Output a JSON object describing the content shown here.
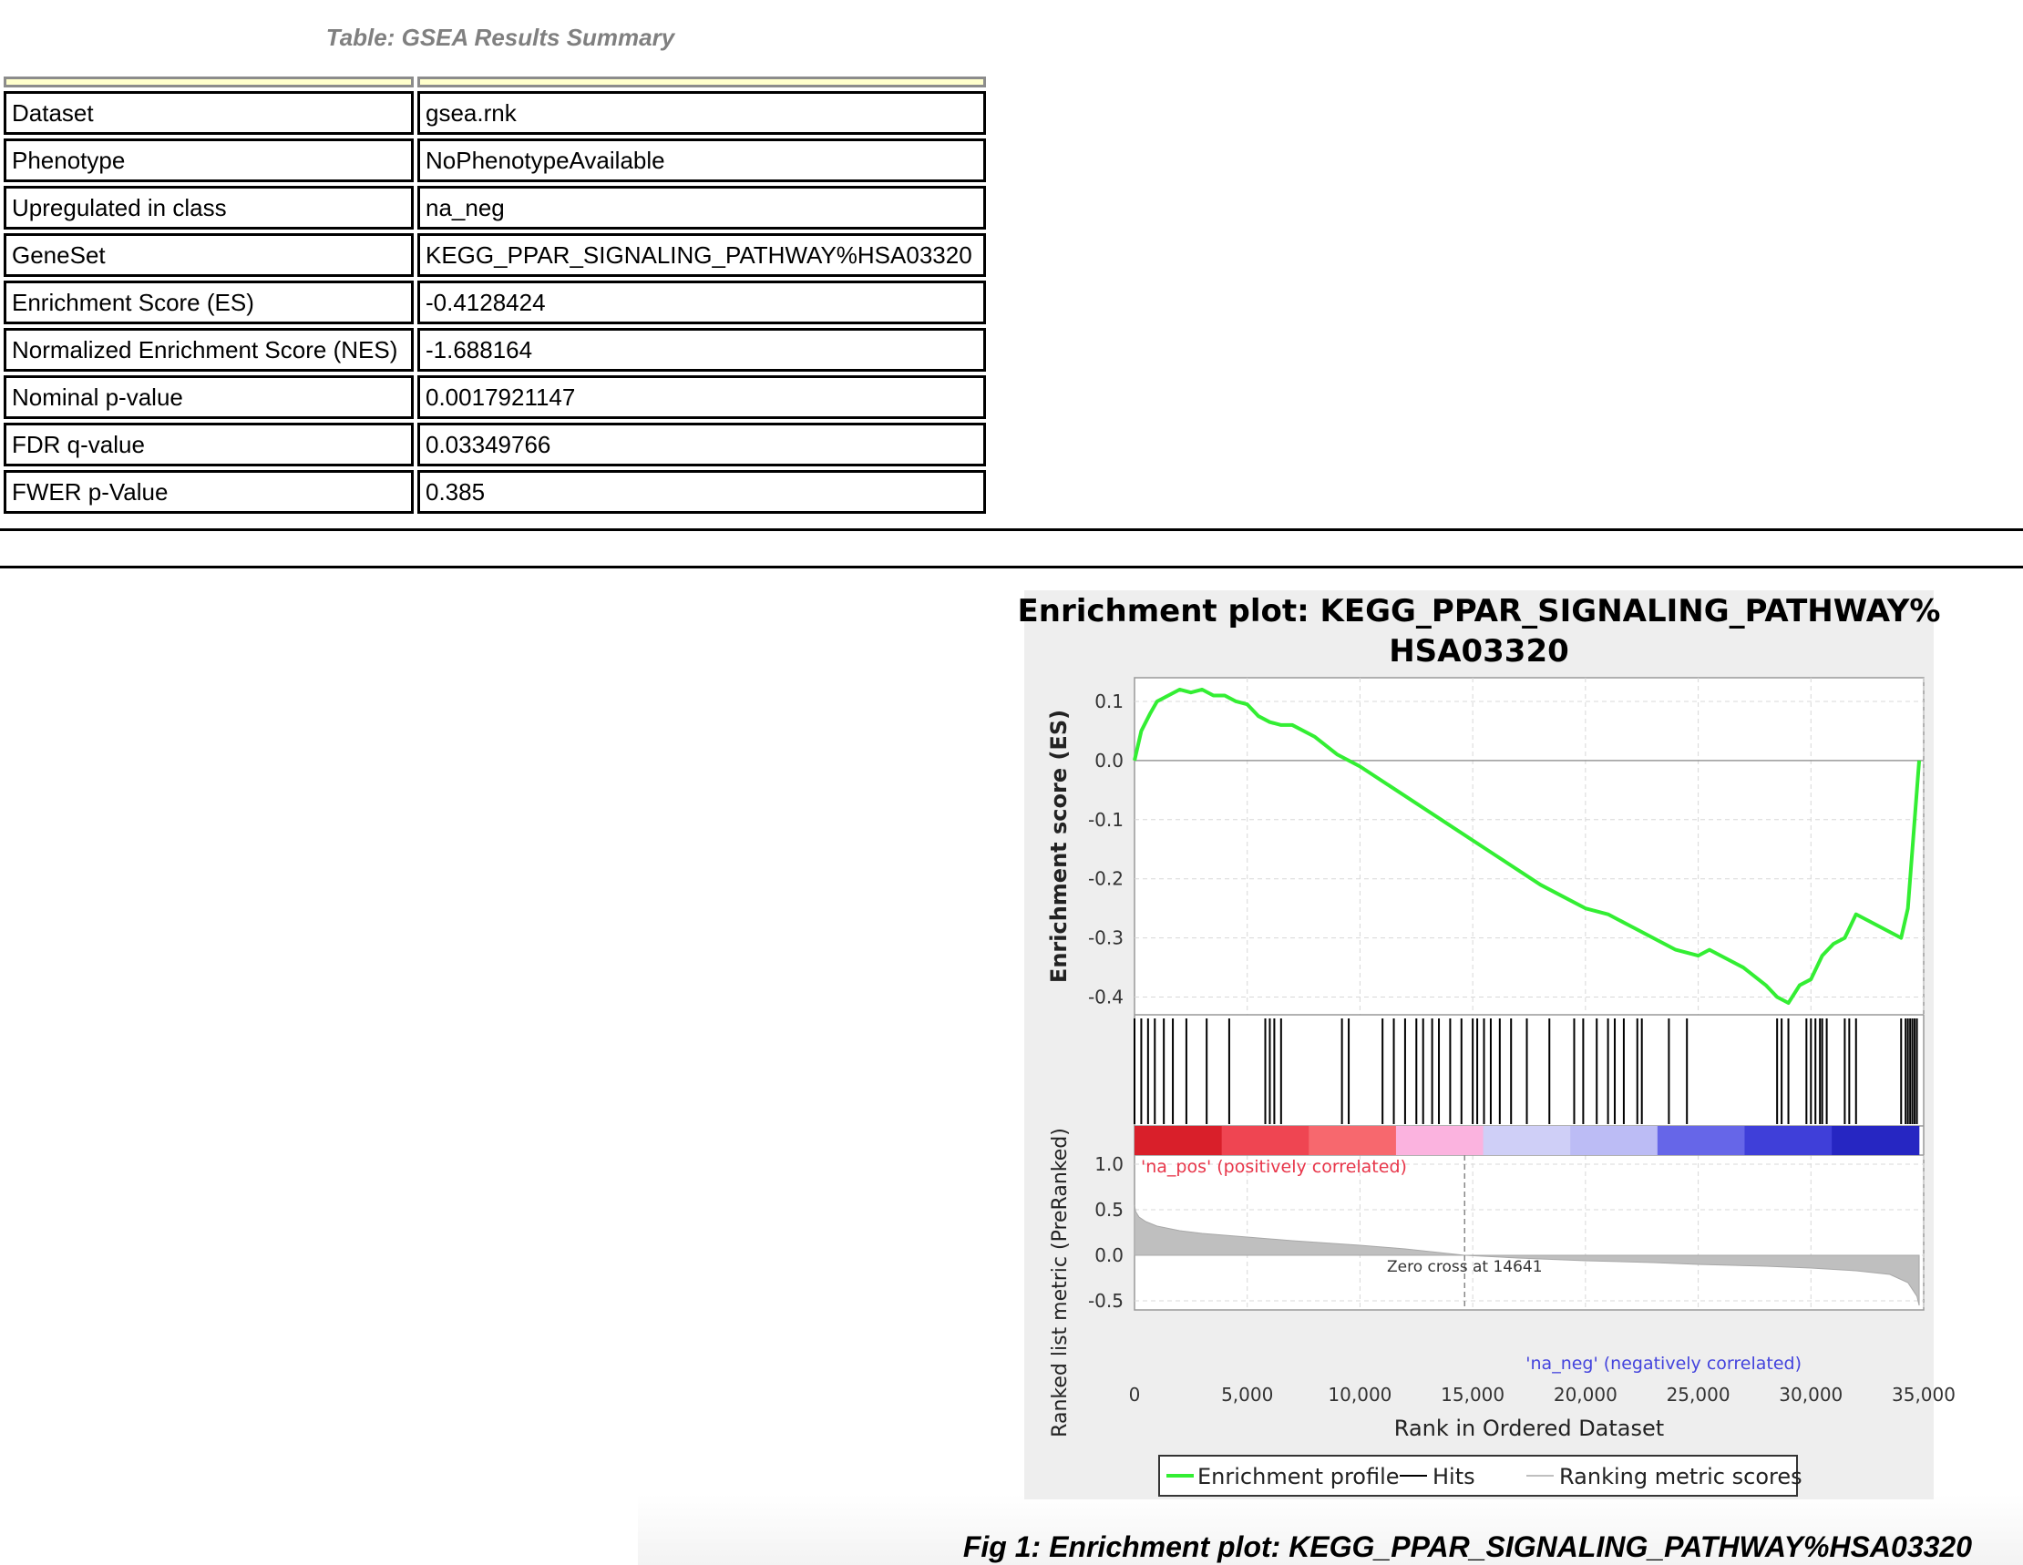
{
  "table": {
    "caption": "Table: GSEA Results Summary",
    "rows": [
      {
        "key": "Dataset",
        "value": "gsea.rnk"
      },
      {
        "key": "Phenotype",
        "value": "NoPhenotypeAvailable"
      },
      {
        "key": "Upregulated in class",
        "value": "na_neg"
      },
      {
        "key": "GeneSet",
        "value": "KEGG_PPAR_SIGNALING_PATHWAY%HSA03320"
      },
      {
        "key": "Enrichment Score (ES)",
        "value": "-0.4128424"
      },
      {
        "key": "Normalized Enrichment Score (NES)",
        "value": "-1.688164"
      },
      {
        "key": "Nominal p-value",
        "value": "0.0017921147"
      },
      {
        "key": "FDR q-value",
        "value": "0.03349766"
      },
      {
        "key": "FWER p-Value",
        "value": "0.385"
      }
    ]
  },
  "figure": {
    "caption": "Fig 1: Enrichment plot: KEGG_PPAR_SIGNALING_PATHWAY%HSA03320"
  },
  "chart_data": {
    "type": "line",
    "title": "Enrichment plot: KEGG_PPAR_SIGNALING_PATHWAY%HSA03320",
    "title_lines": [
      "Enrichment plot: KEGG_PPAR_SIGNALING_PATHWAY%",
      "HSA03320"
    ],
    "xlabel": "Rank in Ordered Dataset",
    "ylabel_top": "Enrichment score (ES)",
    "ylabel_bottom": "Ranked list metric (PreRanked)",
    "xlim": [
      0,
      35000
    ],
    "x_ticks": [
      0,
      5000,
      10000,
      15000,
      20000,
      25000,
      30000,
      35000
    ],
    "x_tick_labels": [
      "0",
      "5,000",
      "10,000",
      "15,000",
      "20,000",
      "25,000",
      "30,000",
      "35,000"
    ],
    "es_ylim": [
      -0.43,
      0.14
    ],
    "es_ticks": [
      0.1,
      0.0,
      -0.1,
      -0.2,
      -0.3,
      -0.4
    ],
    "es_tick_labels": [
      "0.1",
      "0.0",
      "-0.1",
      "-0.2",
      "-0.3",
      "-0.4"
    ],
    "metric_ylim": [
      -0.6,
      1.1
    ],
    "metric_ticks": [
      1.0,
      0.5,
      0.0,
      -0.5
    ],
    "metric_tick_labels": [
      "1.0",
      "0.5",
      "0.0",
      "-0.5"
    ],
    "grid": true,
    "line_color": "#33ee33",
    "hit_color": "#000000",
    "metric_fill_color": "#bfbfbf",
    "pos_label_color": "#e8364a",
    "neg_label_color": "#4444dd",
    "series": [
      {
        "name": "Enrichment profile",
        "x": [
          0,
          300,
          700,
          1000,
          1500,
          2000,
          2500,
          3000,
          3500,
          4000,
          4500,
          5000,
          5500,
          6000,
          6500,
          7000,
          8000,
          9000,
          9500,
          10000,
          12000,
          14000,
          16000,
          18000,
          19000,
          20000,
          21000,
          22000,
          23000,
          24000,
          25000,
          25500,
          26000,
          27000,
          28000,
          28500,
          29000,
          29500,
          30000,
          30500,
          31000,
          31500,
          32000,
          32500,
          33000,
          33500,
          34000,
          34300,
          34500,
          34700,
          34800
        ],
        "y": [
          0.0,
          0.05,
          0.08,
          0.1,
          0.11,
          0.12,
          0.115,
          0.12,
          0.11,
          0.11,
          0.1,
          0.095,
          0.075,
          0.065,
          0.06,
          0.06,
          0.04,
          0.01,
          0.0,
          -0.01,
          -0.06,
          -0.11,
          -0.16,
          -0.21,
          -0.23,
          -0.25,
          -0.26,
          -0.28,
          -0.3,
          -0.32,
          -0.33,
          -0.32,
          -0.33,
          -0.35,
          -0.38,
          -0.4,
          -0.41,
          -0.38,
          -0.37,
          -0.33,
          -0.31,
          -0.3,
          -0.26,
          -0.27,
          -0.28,
          -0.29,
          -0.3,
          -0.25,
          -0.15,
          -0.05,
          0.0
        ]
      },
      {
        "name": "Hits",
        "hits": [
          0,
          300,
          600,
          900,
          1300,
          1700,
          2300,
          3200,
          4200,
          5800,
          6000,
          6200,
          6500,
          9200,
          9500,
          11000,
          11500,
          12000,
          12500,
          12800,
          13200,
          13500,
          14000,
          14500,
          15000,
          15200,
          15500,
          15800,
          16200,
          16700,
          17400,
          18400,
          19500,
          19900,
          20500,
          21000,
          21300,
          21700,
          22300,
          22500,
          23700,
          24500,
          28500,
          28700,
          29000,
          29800,
          30000,
          30200,
          30400,
          30500,
          30700,
          31500,
          31700,
          32000,
          34000,
          34200,
          34300,
          34400,
          34500,
          34600,
          34700
        ]
      },
      {
        "name": "Ranking metric scores",
        "x": [
          0,
          50,
          200,
          500,
          1000,
          2000,
          3000,
          5000,
          7000,
          10000,
          12000,
          14641,
          17000,
          20000,
          23000,
          25000,
          28000,
          30000,
          32000,
          33500,
          34300,
          34700,
          34800
        ],
        "y": [
          0.55,
          0.48,
          0.42,
          0.37,
          0.32,
          0.27,
          0.24,
          0.2,
          0.16,
          0.11,
          0.07,
          0.0,
          -0.03,
          -0.06,
          -0.08,
          -0.1,
          -0.12,
          -0.14,
          -0.17,
          -0.21,
          -0.3,
          -0.45,
          -0.55
        ]
      }
    ],
    "heatmap_colors": [
      "#d91f2a",
      "#ef4552",
      "#f7686e",
      "#fbb3df",
      "#cfcff7",
      "#bcbcf5",
      "#6666e8",
      "#3f3fd9",
      "#2626c2"
    ],
    "zero_cross": 14641,
    "zero_cross_label": "Zero cross at 14641",
    "pos_label": "'na_pos' (positively correlated)",
    "neg_label": "'na_neg' (negatively correlated)",
    "legend": [
      {
        "label": "Enrichment profile",
        "color": "#33ee33"
      },
      {
        "label": "Hits",
        "color": "#000000"
      },
      {
        "label": "Ranking metric scores",
        "color": "#bfbfbf"
      }
    ],
    "legend_position": "bottom"
  }
}
